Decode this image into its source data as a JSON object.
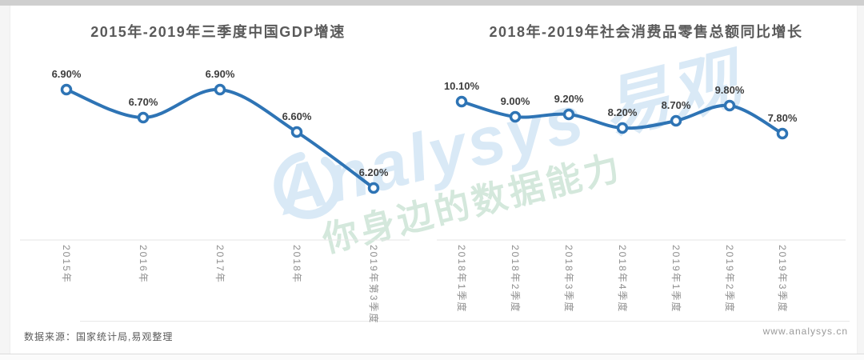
{
  "frame": {
    "source_note": "数据来源：国家统计局,易观整理",
    "website": "www.analysys.cn",
    "watermark": {
      "brand": "Analysys 易观",
      "slogan": "你身边的数据能力"
    }
  },
  "colors": {
    "line": "#2e74b5",
    "marker_fill": "#ffffff",
    "title": "#5a5a5a",
    "value_label": "#3d3d3d",
    "axis_label": "#8e8e8e",
    "axis_line": "#e6e6e6",
    "watermark_blue": "#d9e9f6",
    "watermark_green": "#d4e8dc",
    "footer_text": "#595959",
    "website_text": "#9a9a9a"
  },
  "chart_data": [
    {
      "type": "line",
      "title": "2015年-2019年三季度中国GDP增速",
      "categories": [
        "2015年",
        "2016年",
        "2017年",
        "2018年",
        "2019年第3季度"
      ],
      "values": [
        6.9,
        6.7,
        6.9,
        6.6,
        6.2
      ],
      "labels": [
        "6.90%",
        "6.70%",
        "6.90%",
        "6.60%",
        "6.20%"
      ],
      "xlabel": "",
      "ylabel": "",
      "ylim": [
        5.8,
        7.2
      ],
      "grid": false,
      "legend": "none"
    },
    {
      "type": "line",
      "title": "2018年-2019年社会消费品零售总额同比增长",
      "categories": [
        "2018年1季度",
        "2018年2季度",
        "2018年3季度",
        "2018年4季度",
        "2019年1季度",
        "2019年2季度",
        "2019年3季度"
      ],
      "values": [
        10.1,
        9.0,
        9.2,
        8.2,
        8.7,
        9.8,
        7.8
      ],
      "labels": [
        "10.10%",
        "9.00%",
        "9.20%",
        "8.20%",
        "8.70%",
        "9.80%",
        "7.80%"
      ],
      "xlabel": "",
      "ylabel": "",
      "ylim": [
        0,
        14
      ],
      "grid": false,
      "legend": "none"
    }
  ]
}
